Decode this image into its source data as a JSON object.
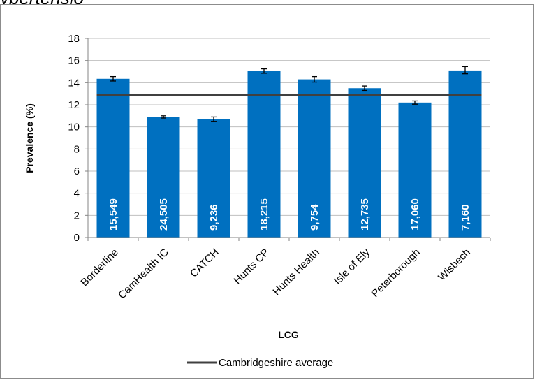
{
  "caption_fragment": "ypertensio",
  "chart_data": {
    "type": "bar",
    "title": "",
    "xlabel": "LCG",
    "ylabel": "Prevalence (%)",
    "ylim": [
      0,
      18
    ],
    "yticks": [
      0,
      2,
      4,
      6,
      8,
      10,
      12,
      14,
      16,
      18
    ],
    "grid": true,
    "legend_position": "bottom",
    "categories": [
      "Borderline",
      "CamHealth IC",
      "CATCH",
      "Hunts CP",
      "Hunts Health",
      "Isle of Ely",
      "Peterborough",
      "Wisbech"
    ],
    "series": [
      {
        "values": [
          14.35,
          10.9,
          10.7,
          15.05,
          14.3,
          13.5,
          12.2,
          15.1
        ],
        "error_low": [
          14.15,
          10.8,
          10.5,
          14.85,
          14.05,
          13.3,
          12.05,
          14.8
        ],
        "error_high": [
          14.55,
          11.0,
          10.9,
          15.25,
          14.55,
          13.7,
          12.35,
          15.45
        ],
        "bar_labels": [
          "15,549",
          "24,505",
          "9,236",
          "18,215",
          "9,754",
          "12,735",
          "17,060",
          "7,160"
        ],
        "color": "#0070C0"
      }
    ],
    "reference_line": {
      "name": "Cambridgeshire average",
      "value": 12.85,
      "color": "#404040"
    }
  }
}
